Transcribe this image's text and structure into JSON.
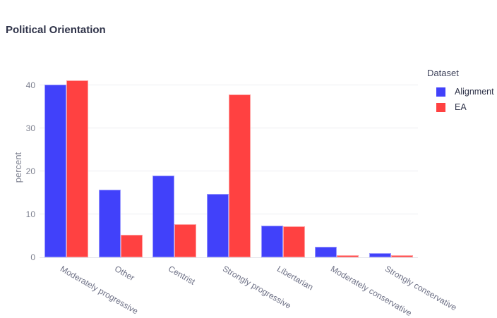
{
  "title": "Political Orientation",
  "legend": {
    "title": "Dataset",
    "entries": [
      {
        "label": "Alignment",
        "color": "#4141fa",
        "border": "#9a9aff"
      },
      {
        "label": "EA",
        "color": "#ff4141",
        "border": "#ff9d9d"
      }
    ]
  },
  "chart_data": {
    "type": "bar",
    "title": "Political Orientation",
    "xlabel": "",
    "ylabel": "percent",
    "categories": [
      "Moderately progressive",
      "Other",
      "Centrist",
      "Strongly progressive",
      "Libertarian",
      "Moderately conservative",
      "Strongly conservative"
    ],
    "series": [
      {
        "name": "Alignment",
        "color": "#4141fa",
        "border": "#9a9aff",
        "values": [
          40.2,
          15.7,
          19.0,
          14.7,
          7.4,
          2.5,
          1.0
        ]
      },
      {
        "name": "EA",
        "color": "#ff4141",
        "border": "#ff9d9d",
        "values": [
          41.2,
          5.3,
          7.7,
          37.9,
          7.2,
          0.5,
          0.5
        ]
      }
    ],
    "ylim": [
      0,
      41.8
    ],
    "yticks": [
      0,
      10,
      20,
      30,
      40
    ],
    "grid": true,
    "legend_position": "right",
    "grid_color": "#ecedf1",
    "zero_line_color": "#e1e3e8",
    "tick_color": "#7d808f",
    "xtick_color": "#6e7186"
  }
}
